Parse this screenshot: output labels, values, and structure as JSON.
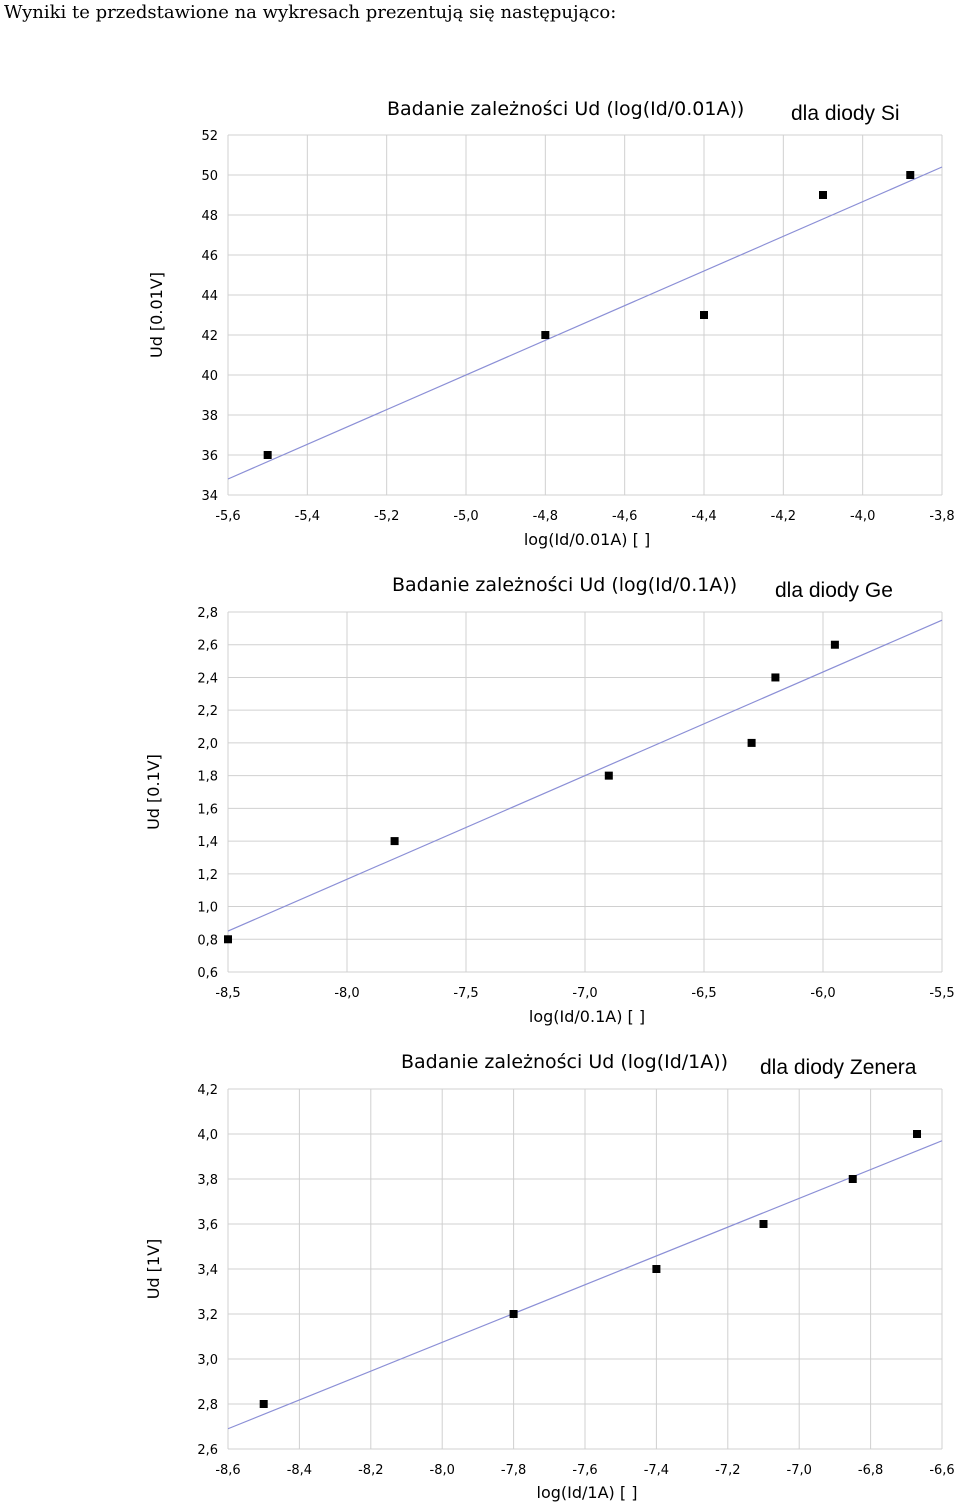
{
  "intro": "Wyniki te przedstawione na wykresach prezentują się następująco:",
  "chart_data": [
    {
      "type": "scatter",
      "title": "Badanie zależności Ud (log(Id/0.01A))",
      "subtitle": "dla diody Si",
      "xlabel": "log(Id/0.01A) [ ]",
      "ylabel": "Ud [0.01V]",
      "xlim": [
        -5.6,
        -3.8
      ],
      "ylim": [
        34,
        52
      ],
      "xticks": [
        "-5,6",
        "-5,4",
        "-5,2",
        "-5,0",
        "-4,8",
        "-4,6",
        "-4,4",
        "-4,2",
        "-4,0",
        "-3,8"
      ],
      "yticks": [
        "34",
        "36",
        "38",
        "40",
        "42",
        "44",
        "46",
        "48",
        "50",
        "52"
      ],
      "grid": true,
      "points": [
        [
          -5.5,
          36
        ],
        [
          -4.8,
          42
        ],
        [
          -4.4,
          43
        ],
        [
          -4.1,
          49
        ],
        [
          -3.88,
          50
        ]
      ],
      "trendline": [
        [
          -5.6,
          34.8
        ],
        [
          -3.8,
          50.4
        ]
      ],
      "colors": {
        "points": "#000000",
        "trend": "#8b8fd6",
        "grid": "#d0d0d0"
      }
    },
    {
      "type": "scatter",
      "title": "Badanie zależności Ud (log(Id/0.1A))",
      "subtitle": "dla diody Ge",
      "xlabel": "log(Id/0.1A) [ ]",
      "ylabel": "Ud [0.1V]",
      "xlim": [
        -8.5,
        -5.5
      ],
      "ylim": [
        0.6,
        2.8
      ],
      "xticks": [
        "-8,5",
        "-8,0",
        "-7,5",
        "-7,0",
        "-6,5",
        "-6,0",
        "-5,5"
      ],
      "yticks": [
        "0,6",
        "0,8",
        "1,0",
        "1,2",
        "1,4",
        "1,6",
        "1,8",
        "2,0",
        "2,2",
        "2,4",
        "2,6",
        "2,8"
      ],
      "grid": true,
      "points": [
        [
          -8.5,
          0.8
        ],
        [
          -7.8,
          1.4
        ],
        [
          -6.9,
          1.8
        ],
        [
          -6.3,
          2.0
        ],
        [
          -6.2,
          2.4
        ],
        [
          -5.95,
          2.6
        ]
      ],
      "trendline": [
        [
          -8.5,
          0.85
        ],
        [
          -5.5,
          2.75
        ]
      ],
      "colors": {
        "points": "#000000",
        "trend": "#8b8fd6",
        "grid": "#d0d0d0"
      }
    },
    {
      "type": "scatter",
      "title": "Badanie zależności Ud (log(Id/1A))",
      "subtitle": "dla diody Zenera",
      "xlabel": "log(Id/1A) [ ]",
      "ylabel": "Ud [1V]",
      "xlim": [
        -8.6,
        -6.6
      ],
      "ylim": [
        2.6,
        4.2
      ],
      "xticks": [
        "-8,6",
        "-8,4",
        "-8,2",
        "-8,0",
        "-7,8",
        "-7,6",
        "-7,4",
        "-7,2",
        "-7,0",
        "-6,8",
        "-6,6"
      ],
      "yticks": [
        "2,6",
        "2,8",
        "3,0",
        "3,2",
        "3,4",
        "3,6",
        "3,8",
        "4,0",
        "4,2"
      ],
      "grid": true,
      "points": [
        [
          -8.5,
          2.8
        ],
        [
          -7.8,
          3.2
        ],
        [
          -7.4,
          3.4
        ],
        [
          -7.1,
          3.6
        ],
        [
          -6.85,
          3.8
        ],
        [
          -6.67,
          4.0
        ]
      ],
      "trendline": [
        [
          -8.6,
          2.69
        ],
        [
          -6.6,
          3.97
        ]
      ],
      "colors": {
        "points": "#000000",
        "trend": "#8b8fd6",
        "grid": "#d0d0d0"
      }
    }
  ]
}
